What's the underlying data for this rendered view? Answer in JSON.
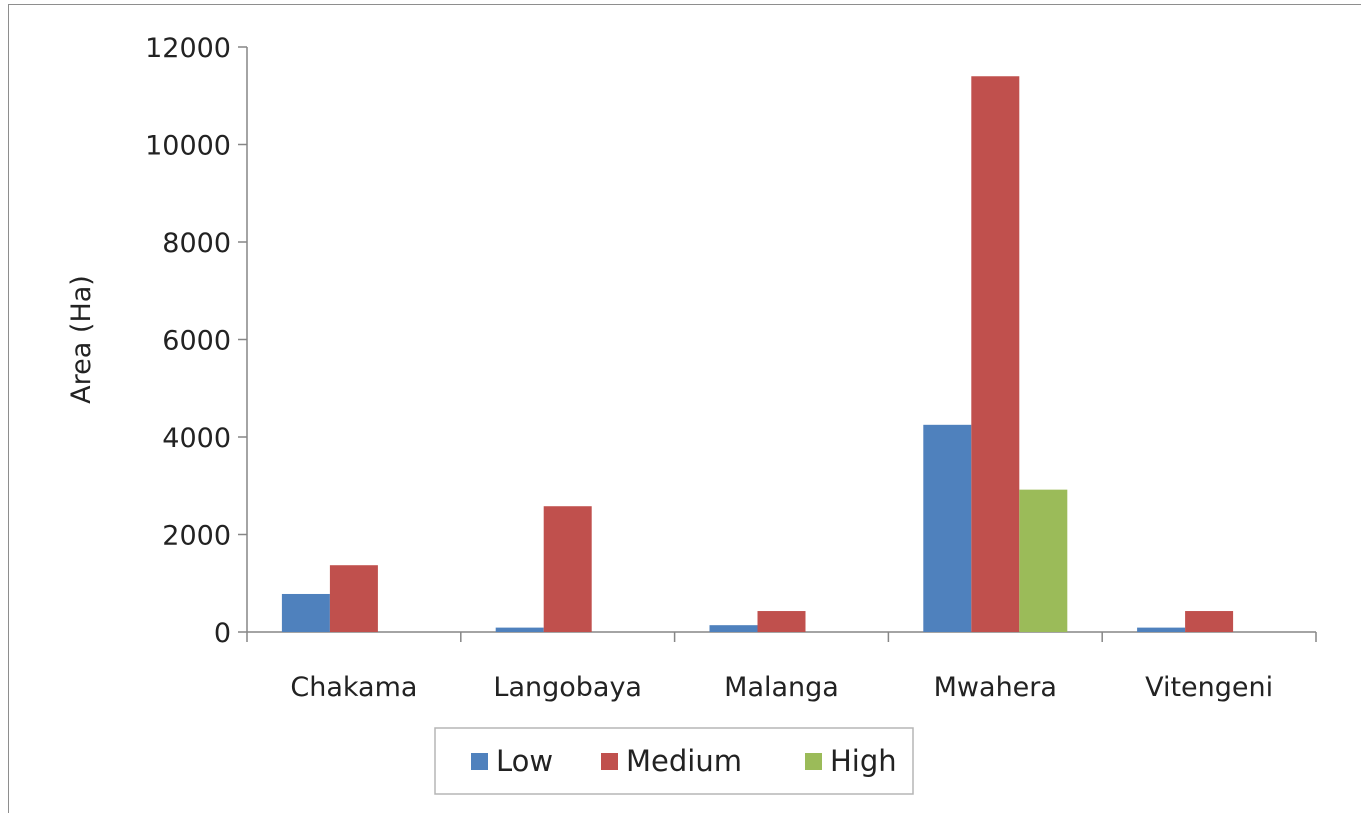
{
  "chart_data": {
    "type": "bar",
    "title": "",
    "xlabel": "",
    "ylabel": "Area (Ha)",
    "ylim": [
      0,
      12000
    ],
    "yticks": [
      0,
      2000,
      4000,
      6000,
      8000,
      10000,
      12000
    ],
    "yticklabels": [
      "0",
      "2000",
      "4000",
      "6000",
      "8000",
      "10000",
      "12000"
    ],
    "categories": [
      "Chakama",
      "Langobaya",
      "Malanga",
      "Mwahera",
      "Vitengeni"
    ],
    "series": [
      {
        "name": "Low",
        "color": "#4f81bd",
        "values": [
          780,
          90,
          140,
          4250,
          90
        ]
      },
      {
        "name": "Medium",
        "color": "#c0504d",
        "values": [
          1370,
          2580,
          430,
          11400,
          430
        ]
      },
      {
        "name": "High",
        "color": "#9bbb59",
        "values": [
          0,
          0,
          0,
          2920,
          0
        ]
      }
    ],
    "grid": false,
    "legend_position": "bottom"
  }
}
